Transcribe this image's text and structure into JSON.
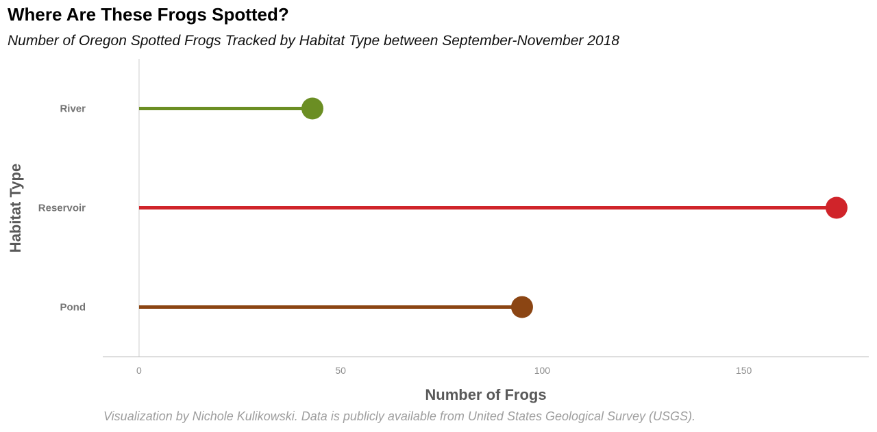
{
  "title": "Where Are These Frogs Spotted?",
  "subtitle": "Number of Oregon Spotted Frogs Tracked by Habitat Type between September-November 2018",
  "caption": "Visualization by Nichole Kulikowski. Data is publicly available from United States Geological Survey (USGS).",
  "chart_data": {
    "type": "lollipop",
    "orientation": "horizontal",
    "categories": [
      "River",
      "Reservoir",
      "Pond"
    ],
    "values": [
      43,
      173,
      95
    ],
    "colors": [
      "#6b8e23",
      "#d0242a",
      "#8b4513"
    ],
    "xlabel": "Number of Frogs",
    "ylabel": "Habitat Type",
    "xlim": [
      -9,
      181
    ],
    "xticks": [
      0,
      50,
      100,
      150
    ],
    "grid": false
  }
}
